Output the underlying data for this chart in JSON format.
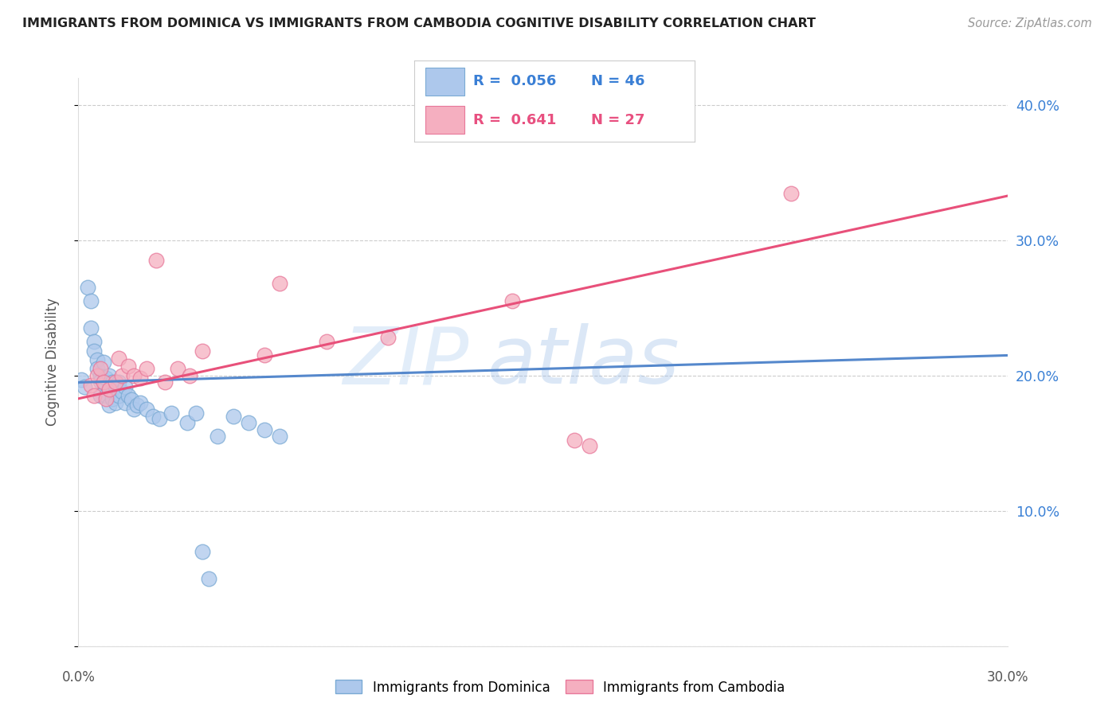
{
  "title": "IMMIGRANTS FROM DOMINICA VS IMMIGRANTS FROM CAMBODIA COGNITIVE DISABILITY CORRELATION CHART",
  "source": "Source: ZipAtlas.com",
  "ylabel": "Cognitive Disability",
  "watermark_zip": "ZIP",
  "watermark_atlas": "atlas",
  "xlim": [
    0.0,
    0.3
  ],
  "ylim": [
    0.0,
    0.42
  ],
  "yticks": [
    0.0,
    0.1,
    0.2,
    0.3,
    0.4
  ],
  "ytick_labels": [
    "",
    "10.0%",
    "20.0%",
    "30.0%",
    "40.0%"
  ],
  "dominica_color": "#adc8ec",
  "dominica_edge": "#7aaad4",
  "cambodia_color": "#f5afc0",
  "cambodia_edge": "#e8789a",
  "trendline_dom_color": "#5588cc",
  "trendline_cam_color": "#e8507a",
  "background_color": "#ffffff",
  "grid_color": "#cccccc",
  "dominica_x": [
    0.001,
    0.002,
    0.003,
    0.004,
    0.004,
    0.005,
    0.005,
    0.006,
    0.006,
    0.007,
    0.007,
    0.007,
    0.008,
    0.008,
    0.009,
    0.009,
    0.01,
    0.01,
    0.01,
    0.011,
    0.011,
    0.012,
    0.012,
    0.013,
    0.013,
    0.014,
    0.015,
    0.015,
    0.016,
    0.017,
    0.018,
    0.019,
    0.02,
    0.022,
    0.024,
    0.026,
    0.03,
    0.035,
    0.038,
    0.04,
    0.042,
    0.045,
    0.05,
    0.055,
    0.06,
    0.065
  ],
  "dominica_y": [
    0.197,
    0.192,
    0.265,
    0.255,
    0.235,
    0.225,
    0.218,
    0.212,
    0.205,
    0.2,
    0.196,
    0.185,
    0.21,
    0.195,
    0.198,
    0.185,
    0.2,
    0.19,
    0.178,
    0.195,
    0.183,
    0.192,
    0.18,
    0.195,
    0.185,
    0.188,
    0.192,
    0.18,
    0.185,
    0.182,
    0.175,
    0.178,
    0.18,
    0.175,
    0.17,
    0.168,
    0.172,
    0.165,
    0.172,
    0.07,
    0.05,
    0.155,
    0.17,
    0.165,
    0.16,
    0.155
  ],
  "cambodia_x": [
    0.004,
    0.005,
    0.006,
    0.007,
    0.008,
    0.009,
    0.01,
    0.012,
    0.013,
    0.014,
    0.016,
    0.018,
    0.02,
    0.022,
    0.025,
    0.028,
    0.032,
    0.036,
    0.04,
    0.06,
    0.065,
    0.08,
    0.1,
    0.14,
    0.16,
    0.165,
    0.23
  ],
  "cambodia_y": [
    0.193,
    0.185,
    0.2,
    0.205,
    0.195,
    0.183,
    0.19,
    0.195,
    0.213,
    0.2,
    0.207,
    0.2,
    0.198,
    0.205,
    0.285,
    0.195,
    0.205,
    0.2,
    0.218,
    0.215,
    0.268,
    0.225,
    0.228,
    0.255,
    0.152,
    0.148,
    0.335
  ],
  "trendline_dom": [
    0.195,
    0.215
  ],
  "trendline_cam": [
    0.183,
    0.333
  ]
}
